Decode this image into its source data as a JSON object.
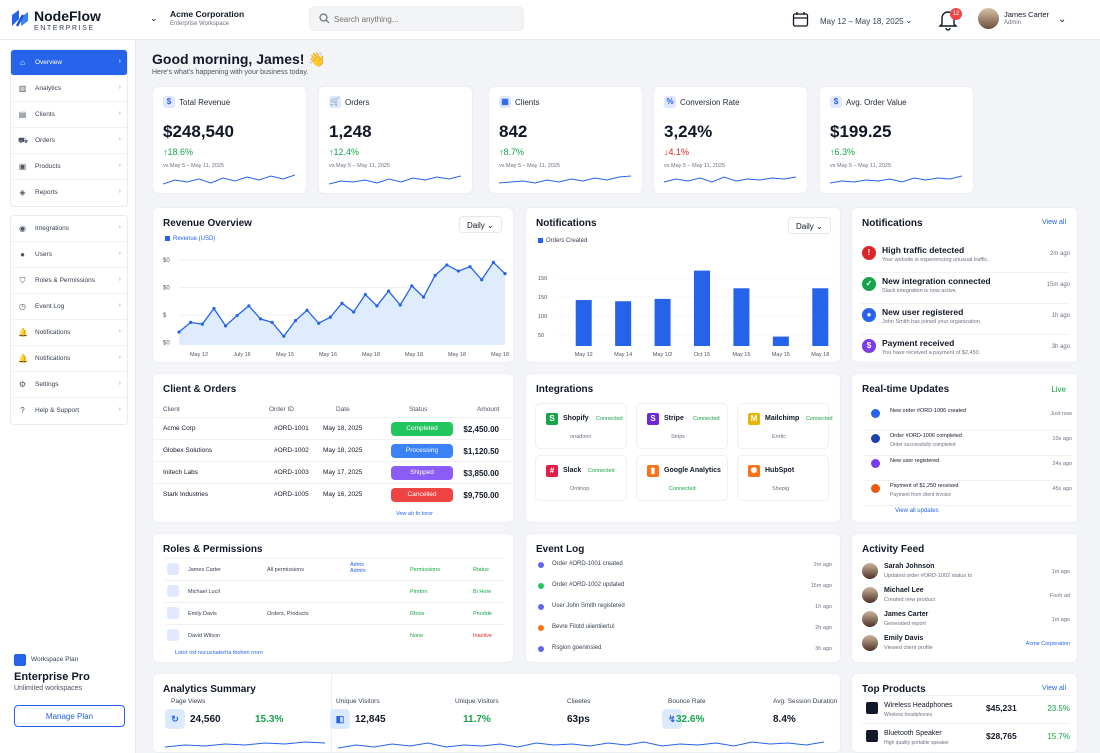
{
  "brand": {
    "name": "NodeFlow",
    "sub": "ENTERPRISE"
  },
  "workspace": {
    "name": "Acme Corporation",
    "sub": "Enterprise Workspace"
  },
  "search": {
    "placeholder": "Search anything..."
  },
  "header": {
    "date_range": "May 12 – May 18, 2025",
    "notif_count": "12",
    "user_name": "James Carter",
    "user_role": "Admin"
  },
  "sidebar": {
    "group1": [
      {
        "label": "Overview",
        "icon": "home-icon"
      },
      {
        "label": "Analytics",
        "icon": "bar-chart-icon"
      },
      {
        "label": "Clients",
        "icon": "clients-icon"
      },
      {
        "label": "Orders",
        "icon": "cart-icon"
      },
      {
        "label": "Products",
        "icon": "box-icon"
      },
      {
        "label": "Reports",
        "icon": "layers-icon"
      }
    ],
    "group2": [
      {
        "label": "Integrations",
        "icon": "plug-icon"
      },
      {
        "label": "Users",
        "icon": "user-icon"
      },
      {
        "label": "Roles & Permissions",
        "icon": "shield-icon"
      },
      {
        "label": "Event Log",
        "icon": "clock-icon"
      },
      {
        "label": "Notifications",
        "icon": "bell-icon"
      },
      {
        "label": "Notifications",
        "icon": "bell-icon"
      },
      {
        "label": "Settings",
        "icon": "gear-icon"
      },
      {
        "label": "Help & Support",
        "icon": "help-icon"
      }
    ]
  },
  "plan": {
    "kicker": "Workspace Plan",
    "name": "Enterprise Pro",
    "sub": "Unlimited workspaces",
    "button": "Manage Plan"
  },
  "greeting": {
    "title": "Good morning, James! 👋",
    "sub": "Here's what's happening with your business today."
  },
  "kpis": [
    {
      "label": "Total Revenue",
      "icon": "$",
      "value": "$248,540",
      "change": "18.6%",
      "dir": "up",
      "period": "vs May 5 – May 11, 2025"
    },
    {
      "label": "Orders",
      "icon": "🛒",
      "value": "1,248",
      "change": "12.4%",
      "dir": "up",
      "period": "vs May 5 – May 11, 2025"
    },
    {
      "label": "Clients",
      "icon": "▦",
      "value": "842",
      "change": "8.7%",
      "dir": "up",
      "period": "vs May 5 – May 11, 2025"
    },
    {
      "label": "Conversion Rate",
      "icon": "%",
      "value": "3,24%",
      "change": "4.1%",
      "dir": "down",
      "period": "vs May 5 – May 11, 2025"
    },
    {
      "label": "Avg. Order Value",
      "icon": "$",
      "value": "$199.25",
      "change": "6.3%",
      "dir": "up",
      "period": "vs May 5 – May 11, 2025"
    }
  ],
  "revenue": {
    "title": "Revenue Overview",
    "dropdown": "Daily",
    "legend": "Revenue (USD)",
    "y_ticks": [
      "$0",
      "$0",
      "$",
      "$0"
    ],
    "x_ticks": [
      "May 12",
      "July 16",
      "May 15",
      "May 16",
      "May 18",
      "May 18",
      "May 18",
      "May 18"
    ]
  },
  "orders_chart": {
    "title": "Notifications",
    "dropdown": "Daily",
    "legend": "Orders Created",
    "y_ticks": [
      "150",
      "150",
      "100",
      "50"
    ],
    "x_ticks": [
      "May 12",
      "May 14",
      "May 1/2",
      "Oct 15",
      "May 15",
      "May 15",
      "May 18"
    ]
  },
  "chart_data": [
    {
      "type": "area",
      "title": "Revenue Overview",
      "series": [
        {
          "name": "Revenue (USD)",
          "values": [
            15,
            26,
            24,
            42,
            22,
            34,
            45,
            30,
            26,
            10,
            28,
            40,
            25,
            32,
            48,
            38,
            58,
            45,
            62,
            46,
            68,
            55,
            80,
            92,
            85,
            90,
            75,
            95,
            82
          ]
        }
      ],
      "ylim": [
        0,
        100
      ]
    },
    {
      "type": "bar",
      "title": "Notifications",
      "categories": [
        "May 12",
        "May 14",
        "May 1/2",
        "Oct 15",
        "May 15",
        "May 15",
        "May 18"
      ],
      "series": [
        {
          "name": "Orders Created",
          "values": [
            78,
            76,
            80,
            128,
            98,
            16,
            98
          ]
        }
      ],
      "ylim": [
        0,
        150
      ]
    }
  ],
  "notifications": {
    "title": "Notifications",
    "view_all": "View all",
    "items": [
      {
        "title": "High traffic detected",
        "desc": "Your website is experiencing unusual traffic.",
        "time": "2m ago",
        "color": "#dc2626",
        "glyph": "!"
      },
      {
        "title": "New integration connected",
        "desc": "Slack integration is now active.",
        "time": "15m ago",
        "color": "#16a34a",
        "glyph": "✓"
      },
      {
        "title": "New user registered",
        "desc": "John Smith has joined your organization.",
        "time": "1h ago",
        "color": "#2563eb",
        "glyph": "●"
      },
      {
        "title": "Payment received",
        "desc": "You have received a payment of $2,450.",
        "time": "3h ago",
        "color": "#7c3aed",
        "glyph": "$"
      }
    ]
  },
  "clients": {
    "title": "Client  & Orders",
    "headers": [
      "Client",
      "Order ID",
      "Date",
      "Status",
      "Amount"
    ],
    "rows": [
      {
        "client": "Acme Corp",
        "id": "#ORD-1001",
        "date": "May 18, 2025",
        "status": "Completed",
        "color": "#22c55e",
        "amount": "$2,450.00"
      },
      {
        "client": "Globex Solutions",
        "id": "#ORD-1002",
        "date": "May 18, 2025",
        "status": "Processing",
        "color": "#3b82f6",
        "amount": "$1,120.50"
      },
      {
        "client": "Initech Labs",
        "id": "#ORD-1003",
        "date": "May 17, 2025",
        "status": "Shipped",
        "color": "#8b5cf6",
        "amount": "$3,850.00"
      },
      {
        "client": "Stark Industries",
        "id": "#ORD-1005",
        "date": "May 16, 2025",
        "status": "Cancelled",
        "color": "#ef4444",
        "amount": "$9,750.00"
      }
    ],
    "footer": "Vew ah fo toror"
  },
  "integrations": {
    "title": "Integrations",
    "items": [
      {
        "name": "Shopify",
        "status": "Connected",
        "sub": "onadonn",
        "color": "#16a34a",
        "glyph": "S"
      },
      {
        "name": "Stripe",
        "status": "Connected",
        "sub": "Strips",
        "color": "#6d28d9",
        "glyph": "S"
      },
      {
        "name": "Mailchimp",
        "status": "Connected",
        "sub": "Enrtlc",
        "color": "#eab308",
        "glyph": "M"
      },
      {
        "name": "Slack",
        "status": "Connected",
        "sub": "Ontinop",
        "color": "#e11d48",
        "glyph": "#"
      },
      {
        "name": "Google Analytics",
        "status": "Connected",
        "sub": "",
        "color": "#f97316",
        "glyph": "▮"
      },
      {
        "name": "HubSpot",
        "status": "",
        "sub": "Shepig",
        "color": "#f97316",
        "glyph": "✺"
      }
    ]
  },
  "realtime": {
    "title": "Real-time Updates",
    "live": "Live",
    "items": [
      {
        "text": "New order #ORD-1006 created",
        "sub": "",
        "time": "Just now",
        "color": "#2563eb"
      },
      {
        "text": "Order #ORD-1006 completed",
        "sub": "Order successfully completed",
        "time": "10s ago",
        "color": "#1e40af"
      },
      {
        "text": "New user registered",
        "sub": "",
        "time": "24s ago",
        "color": "#7c3aed"
      },
      {
        "text": "Payment of $1,250 received",
        "sub": "Payment from client invoice",
        "time": "45s ago",
        "color": "#ea580c"
      }
    ],
    "view_all": "View all updates"
  },
  "roles": {
    "title": "Roles & Permissions",
    "rows": [
      {
        "user": "James Carter",
        "perm": "All permissions",
        "role": "Adms Admin",
        "c3": "Permissions",
        "c4": "Rtatus"
      },
      {
        "user": "Michael Lucil",
        "perm": "",
        "role": "",
        "c3": "Pinrtnn",
        "c4": "Bi Hore"
      },
      {
        "user": "Emily Davis",
        "perm": "Orders, Products",
        "role": "",
        "c3": "Rtrois",
        "c4": "Pnodde"
      },
      {
        "user": "David Wilson",
        "perm": "",
        "role": "",
        "c3": "None",
        "c4": "Inactive"
      }
    ],
    "footer": "Lotor oxt nocucnaterha tbohen rrorn"
  },
  "eventlog": {
    "title": "Event Log",
    "items": [
      {
        "text": "Order #ORD-1001 created",
        "time": "2m ago",
        "color": "#6366f1"
      },
      {
        "text": "Order #ORD-1002 updated",
        "time": "15m ago",
        "color": "#22c55e"
      },
      {
        "text": "User John Smith registered",
        "time": "1h ago",
        "color": "#6366f1"
      },
      {
        "text": "Bevre Filotd uiientiiertu!",
        "time": "2h ago",
        "color": "#f97316"
      },
      {
        "text": "Rsgion goeninsied",
        "time": "3h ago",
        "color": "#6366f1"
      }
    ]
  },
  "activity": {
    "title": "Activity Feed",
    "items": [
      {
        "name": "Sarah Johnson",
        "desc": "Updated order #ORD-1002 status to",
        "time": "1m ago"
      },
      {
        "name": "Michael Lee",
        "desc": "Created new product",
        "time": "Fooh ad"
      },
      {
        "name": "James Carter",
        "desc": "Generated report",
        "time": "1m ago"
      },
      {
        "name": "Emily Davis",
        "desc": "Viewed client profile",
        "time": "Acme Corporation"
      }
    ]
  },
  "analytics": {
    "title": "Analytics Summary",
    "metrics": [
      {
        "label": "Page Views",
        "value": "24,560",
        "change": "15.3%",
        "glyph": "↻"
      },
      {
        "label": "Unique Visitors",
        "value": "12,845",
        "change": "",
        "glyph": "◧"
      },
      {
        "label": "Unique Visitors",
        "value": "",
        "change": "11.7%",
        "glyph": ""
      },
      {
        "label": "Clieetes",
        "value": "63ps",
        "change": "",
        "glyph": ""
      },
      {
        "label": "Bounce Rate",
        "value": "",
        "change": "32.6%",
        "glyph": "↯"
      },
      {
        "label": "Avg. Session Duration",
        "value": "8.4%",
        "change": "",
        "glyph": ""
      }
    ]
  },
  "top_products": {
    "title": "Top Products",
    "view_all": "View all",
    "items": [
      {
        "name": "Wireless Headphones",
        "sub": "Wireless headphones",
        "price": "$45,231",
        "pct": "23.5%"
      },
      {
        "name": "Bluetooth Speaker",
        "sub": "High quality portable speaker",
        "price": "$28,765",
        "pct": "15.7%"
      }
    ]
  }
}
